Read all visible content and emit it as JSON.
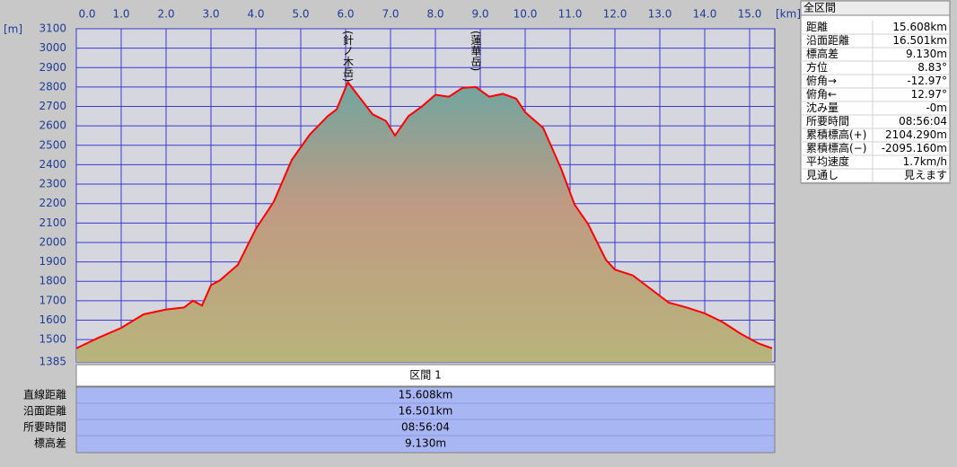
{
  "chart_data": {
    "type": "area",
    "x_unit": "[km]",
    "y_unit": "[m]",
    "x": [
      0,
      0.5,
      1.0,
      1.5,
      2.0,
      2.4,
      2.6,
      2.8,
      3.0,
      3.2,
      3.6,
      4.0,
      4.4,
      4.8,
      5.2,
      5.6,
      5.8,
      6.05,
      6.3,
      6.6,
      6.9,
      7.1,
      7.4,
      7.7,
      8.0,
      8.3,
      8.6,
      8.9,
      9.2,
      9.5,
      9.8,
      10.0,
      10.4,
      10.8,
      11.1,
      11.4,
      11.8,
      12.0,
      12.4,
      12.8,
      13.2,
      13.6,
      14.0,
      14.4,
      14.8,
      15.2,
      15.5
    ],
    "values": [
      1455,
      1510,
      1560,
      1630,
      1655,
      1665,
      1700,
      1675,
      1780,
      1805,
      1885,
      2070,
      2210,
      2425,
      2555,
      2650,
      2685,
      2825,
      2750,
      2660,
      2625,
      2550,
      2650,
      2700,
      2760,
      2750,
      2795,
      2800,
      2750,
      2765,
      2740,
      2670,
      2590,
      2380,
      2195,
      2095,
      1910,
      1860,
      1830,
      1760,
      1690,
      1665,
      1635,
      1590,
      1530,
      1480,
      1455
    ],
    "color": "#ff0000",
    "xlim": [
      0,
      15.56
    ],
    "ylim": [
      1385,
      3100
    ],
    "xticks": [
      {
        "value": 0,
        "label": "0.0"
      },
      {
        "value": 1,
        "label": "1.0"
      },
      {
        "value": 2,
        "label": "2.0"
      },
      {
        "value": 3,
        "label": "3.0"
      },
      {
        "value": 4,
        "label": "4.0"
      },
      {
        "value": 5,
        "label": "5.0"
      },
      {
        "value": 6,
        "label": "6.0"
      },
      {
        "value": 7,
        "label": "7.0"
      },
      {
        "value": 8,
        "label": "8.0"
      },
      {
        "value": 9,
        "label": "9.0"
      },
      {
        "value": 10,
        "label": "10.0"
      },
      {
        "value": 11,
        "label": "11.0"
      },
      {
        "value": 12,
        "label": "12.0"
      },
      {
        "value": 13,
        "label": "13.0"
      },
      {
        "value": 14,
        "label": "14.0"
      },
      {
        "value": 15,
        "label": "15.0"
      }
    ],
    "yticks": [
      1385,
      1500,
      1600,
      1700,
      1800,
      1900,
      2000,
      2100,
      2200,
      2300,
      2400,
      2500,
      2600,
      2700,
      2800,
      2900,
      3000,
      3100
    ],
    "grid": true,
    "annotations": [
      {
        "text": "(針ノ木岳)",
        "x": 6.05
      },
      {
        "text": "(蓮華岳)",
        "x": 8.9
      }
    ]
  },
  "summary_panel": {
    "title": "全区間",
    "rows": [
      [
        "距離",
        "15.608km"
      ],
      [
        "沿面距離",
        "16.501km"
      ],
      [
        "標高差",
        "9.130m"
      ],
      [
        "方位",
        "8.83°"
      ],
      [
        "俯角→",
        "-12.97°"
      ],
      [
        "俯角←",
        "12.97°"
      ],
      [
        "沈み量",
        "-0m"
      ],
      [
        "所要時間",
        "08:56:04"
      ],
      [
        "累積標高(+)",
        "2104.290m"
      ],
      [
        "累積標高(−)",
        "-2095.160m"
      ],
      [
        "平均速度",
        "1.7km/h"
      ],
      [
        "見通し",
        "見えます"
      ]
    ]
  },
  "section_table": {
    "header": "区間 1",
    "rows": [
      [
        "直線距離",
        "15.608km"
      ],
      [
        "沿面距離",
        "16.501km"
      ],
      [
        "所要時間",
        "08:56:04"
      ],
      [
        "標高差",
        "9.130m"
      ]
    ]
  }
}
